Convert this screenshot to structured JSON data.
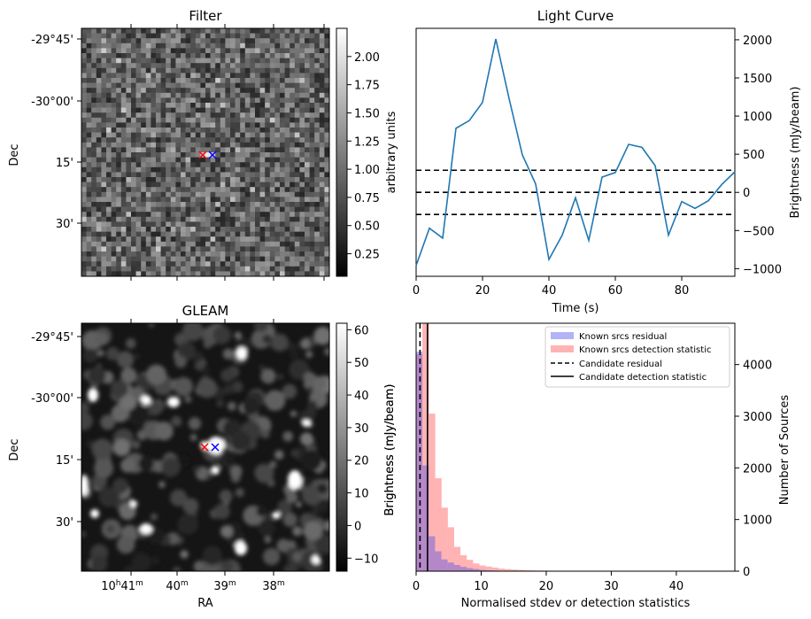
{
  "colors": {
    "line": "#1f77b4",
    "known_residual": "#b3b3f7",
    "known_detection": "#ffb3b3",
    "overlap": "#b487c8",
    "red_marker": "#ff0000",
    "blue_marker": "#0000ff"
  },
  "chart_data": [
    {
      "type": "heatmap",
      "title": "Filter",
      "xlabel": "",
      "ylabel": "Dec",
      "ytick_labels": [
        "-29°45'",
        "-30°00'",
        "15'",
        "30'"
      ],
      "colorbar": {
        "label": "arbitrary units",
        "range": [
          0.05,
          2.25
        ],
        "ticks": [
          "0.25",
          "0.50",
          "0.75",
          "1.00",
          "1.25",
          "1.50",
          "1.75",
          "2.00"
        ],
        "tick_values": [
          0.25,
          0.5,
          0.75,
          1.0,
          1.25,
          1.5,
          1.75,
          2.0
        ]
      },
      "markers": [
        {
          "symbol": "x",
          "color": "red"
        },
        {
          "symbol": "x",
          "color": "blue"
        }
      ]
    },
    {
      "type": "line",
      "title": "Light Curve",
      "xlabel": "Time (s)",
      "ylabel": "Brightness (mJy/beam)",
      "xlim": [
        0,
        96
      ],
      "ylim": [
        -1100,
        2150
      ],
      "xticks": [
        0,
        20,
        40,
        60,
        80
      ],
      "xtick_labels": [
        "0",
        "20",
        "40",
        "60",
        "80"
      ],
      "yticks": [
        -1000,
        -500,
        0,
        500,
        1000,
        1500,
        2000
      ],
      "ytick_labels": [
        "−1000",
        "−500",
        "0",
        "500",
        "1000",
        "1500",
        "2000"
      ],
      "hlines": [
        290,
        0,
        -290
      ],
      "series": [
        {
          "x": [
            0,
            4,
            8,
            12,
            16,
            20,
            24,
            28,
            32,
            36,
            40,
            44,
            48,
            52,
            56,
            60,
            64,
            68,
            72,
            76,
            80,
            84,
            88,
            92,
            96
          ],
          "y": [
            -960,
            -470,
            -600,
            840,
            940,
            1180,
            2010,
            1230,
            490,
            110,
            -880,
            -560,
            -70,
            -630,
            200,
            260,
            630,
            590,
            350,
            -560,
            -120,
            -210,
            -110,
            100,
            270
          ]
        }
      ]
    },
    {
      "type": "heatmap",
      "title": "GLEAM",
      "xlabel": "RA",
      "ylabel": "Dec",
      "xtick_labels": [
        "10h41m",
        "40m",
        "39m",
        "38m"
      ],
      "ytick_labels": [
        "-29°45'",
        "-30°00'",
        "15'",
        "30'"
      ],
      "colorbar": {
        "label": "Brightness (mJy/beam)",
        "range": [
          -14,
          62
        ],
        "ticks": [
          "−10",
          "0",
          "10",
          "20",
          "30",
          "40",
          "50",
          "60"
        ],
        "tick_values": [
          -10,
          0,
          10,
          20,
          30,
          40,
          50,
          60
        ]
      },
      "markers": [
        {
          "symbol": "x",
          "color": "red"
        },
        {
          "symbol": "x",
          "color": "blue"
        }
      ]
    },
    {
      "type": "bar",
      "title": "",
      "xlabel": "Normalised stdev or detection statistics",
      "ylabel": "Brightness (mJy/beam)",
      "y2label": "Number of Sources",
      "xlim": [
        0,
        49
      ],
      "ylim": [
        0,
        4800
      ],
      "xticks": [
        0,
        10,
        20,
        30,
        40
      ],
      "xtick_labels": [
        "0",
        "10",
        "20",
        "30",
        "40"
      ],
      "yticks": [
        0,
        1000,
        2000,
        3000,
        4000
      ],
      "ytick_labels": [
        "0",
        "1000",
        "2000",
        "3000",
        "4000"
      ],
      "bin_width": 0.97,
      "legend": {
        "placement": "top-right",
        "entries": [
          "Known srcs residual",
          "Known srcs detection statistic",
          "Candidate residual",
          "Candidate detection statistic"
        ]
      },
      "vlines": [
        {
          "name": "Candidate residual",
          "x": 0.6,
          "style": "dashed"
        },
        {
          "name": "Candidate detection statistic",
          "x": 1.75,
          "style": "solid"
        }
      ],
      "series": [
        {
          "name": "Known srcs residual",
          "values": [
            4250,
            2050,
            680,
            390,
            230,
            170,
            120,
            85,
            60,
            45,
            30,
            22,
            15,
            10,
            8,
            6,
            5,
            4,
            3,
            2
          ]
        },
        {
          "name": "Known srcs detection statistic",
          "values": [
            4200,
            4800,
            3050,
            1800,
            1230,
            850,
            470,
            310,
            220,
            150,
            110,
            90,
            70,
            50,
            40,
            30,
            25,
            20,
            15,
            12,
            10,
            8,
            7,
            6,
            5,
            4,
            3,
            3,
            2,
            2,
            2,
            1,
            1,
            1,
            1,
            1,
            1,
            1,
            1,
            1
          ]
        }
      ]
    }
  ]
}
